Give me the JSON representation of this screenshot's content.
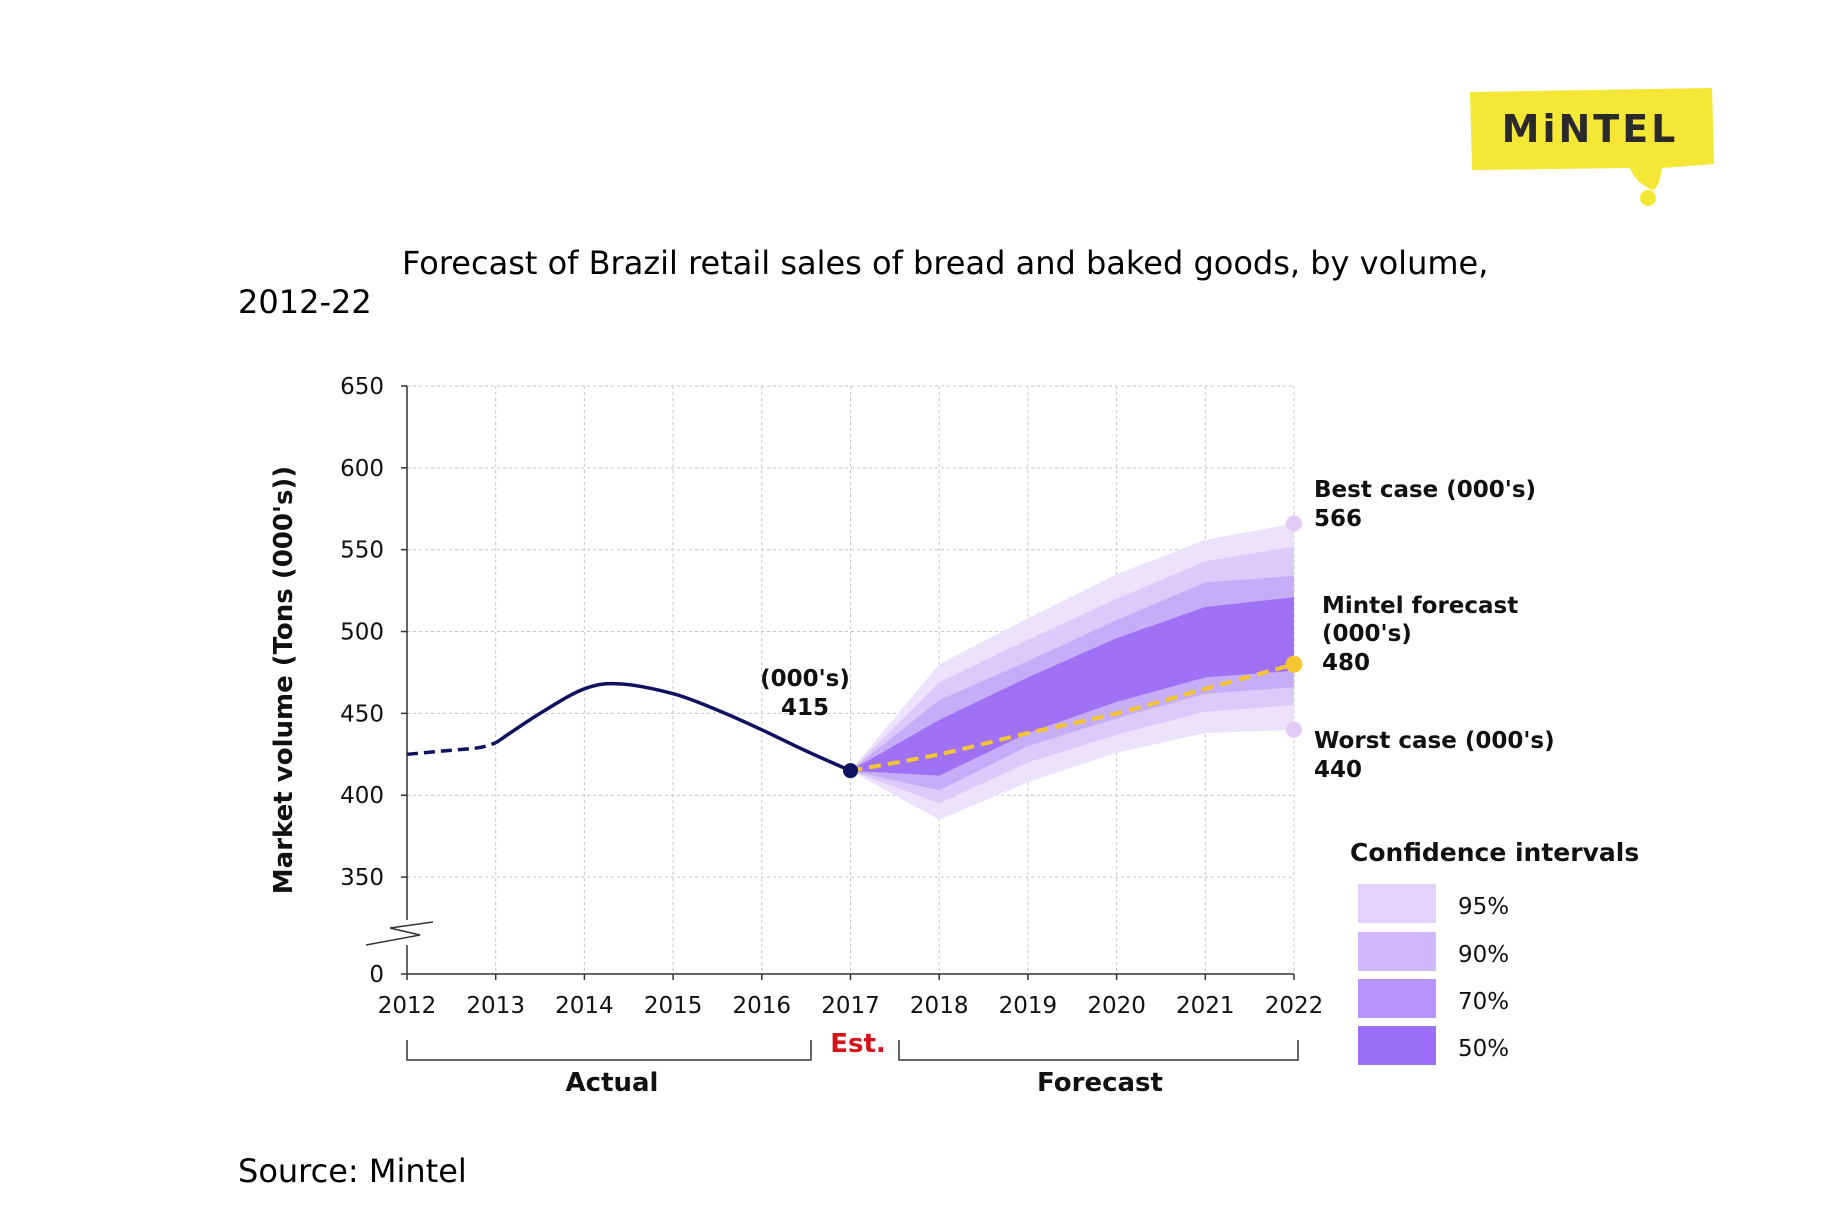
{
  "logo": {
    "text": "MiNTEL",
    "color": "#f5e735"
  },
  "title_line1": "Forecast of Brazil retail sales of bread and baked goods, by volume,",
  "title_line2": "2012-22",
  "source": "Source: Mintel",
  "chart_data": {
    "type": "area",
    "title": "Forecast of Brazil retail sales of bread and baked goods, by volume, 2012-22",
    "ylabel": "Market volume (Tons (000's))",
    "ylim": [
      0,
      650
    ],
    "y_axis_break": [
      0,
      325
    ],
    "yticks": [
      0,
      350,
      400,
      450,
      500,
      550,
      600,
      650
    ],
    "xticks": [
      "2012",
      "2013",
      "2014",
      "2015",
      "2016",
      "2017",
      "2018",
      "2019",
      "2020",
      "2021",
      "2022"
    ],
    "grid": true,
    "actual": {
      "x": [
        2012,
        2012.4,
        2012.8,
        2013.0,
        2013.5,
        2014.0,
        2014.4,
        2015.0,
        2015.5,
        2016.0,
        2016.5,
        2017.0
      ],
      "y": [
        425,
        427,
        429,
        432,
        450,
        465,
        468,
        462,
        452,
        440,
        427,
        415
      ],
      "dashed_until": 2013
    },
    "forecast": {
      "x": [
        2017,
        2018,
        2019,
        2020,
        2021,
        2022
      ],
      "y": [
        415,
        425,
        438,
        450,
        465,
        480
      ],
      "color": "#f5c431"
    },
    "confidence_intervals": {
      "x": [
        2017,
        2018,
        2019,
        2020,
        2021,
        2022
      ],
      "ci95": {
        "upper": [
          415,
          480,
          508,
          535,
          556,
          566
        ],
        "lower": [
          415,
          385,
          408,
          426,
          438,
          440
        ]
      },
      "ci90": {
        "upper": [
          415,
          469,
          495,
          520,
          543,
          552
        ],
        "lower": [
          415,
          395,
          420,
          437,
          451,
          455
        ]
      },
      "ci70": {
        "upper": [
          415,
          458,
          482,
          507,
          530,
          534
        ],
        "lower": [
          415,
          403,
          430,
          447,
          462,
          466
        ]
      },
      "ci50": {
        "upper": [
          415,
          446,
          472,
          496,
          515,
          521
        ],
        "lower": [
          415,
          412,
          438,
          457,
          472,
          476
        ]
      }
    },
    "endpoint_labels": {
      "current": {
        "line1": "(000's)",
        "line2": "415",
        "x": 2017,
        "y": 415,
        "color": "#0e1261"
      },
      "best": {
        "line1": "Best case (000's)",
        "line2": "566",
        "y": 566,
        "color": "#e2ccf6"
      },
      "forecast": {
        "line1": "Mintel forecast",
        "line2": "(000's)",
        "line3": "480",
        "y": 480,
        "color": "#f5c431"
      },
      "worst": {
        "line1": "Worst case (000's)",
        "line2": "440",
        "y": 440,
        "color": "#e2ccf6"
      }
    },
    "period_labels": {
      "actual": "Actual",
      "est": "Est.",
      "forecast": "Forecast"
    },
    "legend": {
      "title": "Confidence intervals",
      "placement": "bottom-right",
      "entries": [
        {
          "label": "95%",
          "color": "#e3d2fa"
        },
        {
          "label": "90%",
          "color": "#d0b6fa"
        },
        {
          "label": "70%",
          "color": "#b895fa"
        },
        {
          "label": "50%",
          "color": "#9d70f9"
        }
      ]
    },
    "colors": {
      "actual_line": "#0e1261",
      "band95": "#ece2fb",
      "band90": "#dccbfa",
      "band70": "#c6adf7",
      "band50": "#9f72f5",
      "est_label": "#d5111c"
    }
  }
}
